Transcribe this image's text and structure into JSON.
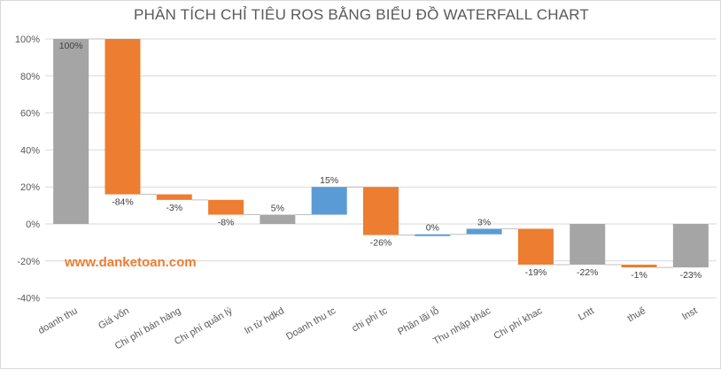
{
  "watermark": "www.danketoan.com",
  "colors": {
    "total": "#a5a5a5",
    "decrease": "#ed7d31",
    "increase": "#5b9bd5",
    "grid": "#d9d9d9",
    "connector": "#bfbfbf"
  },
  "chart_data": {
    "type": "bar",
    "subtype": "waterfall",
    "title": "PHÂN TÍCH CHỈ TIÊU ROS BẰNG BIỂU ĐỒ WATERFALL CHART",
    "xlabel": "",
    "ylabel": "",
    "ylim": [
      -40,
      100
    ],
    "yticks": [
      100,
      80,
      60,
      40,
      20,
      0,
      -20,
      -40
    ],
    "ytick_labels": [
      "100%",
      "80%",
      "60%",
      "40%",
      "20%",
      "0%",
      "-20%",
      "-40%"
    ],
    "grid": true,
    "legend": "none",
    "categories": [
      "doanh thu",
      "Giá vốn",
      "Chi phí bán hàng",
      "Chi phí quản lý",
      "ln từ hdkd",
      "Doanh thu tc",
      "chi phí tc",
      "Phần lãi lỗ",
      "Thu nhập khác",
      "Chi phí khac",
      "Lntt",
      "thuế",
      "lnst"
    ],
    "bars": [
      {
        "label": "100%",
        "start": 0,
        "end": 100,
        "kind": "total"
      },
      {
        "label": "-84%",
        "start": 100,
        "end": 16,
        "kind": "decrease"
      },
      {
        "label": "-3%",
        "start": 16,
        "end": 13,
        "kind": "decrease"
      },
      {
        "label": "-8%",
        "start": 13,
        "end": 5,
        "kind": "decrease"
      },
      {
        "label": "5%",
        "start": 0,
        "end": 5,
        "kind": "total"
      },
      {
        "label": "15%",
        "start": 5,
        "end": 20,
        "kind": "increase"
      },
      {
        "label": "-26%",
        "start": 20,
        "end": -6,
        "kind": "decrease"
      },
      {
        "label": "0%",
        "start": -6,
        "end": -5.6,
        "kind": "increase"
      },
      {
        "label": "3%",
        "start": -5.6,
        "end": -2.6,
        "kind": "increase"
      },
      {
        "label": "-19%",
        "start": -2.6,
        "end": -22,
        "kind": "decrease"
      },
      {
        "label": "-22%",
        "start": 0,
        "end": -22,
        "kind": "total"
      },
      {
        "label": "-1%",
        "start": -22,
        "end": -23.5,
        "kind": "decrease"
      },
      {
        "label": "-23%",
        "start": 0,
        "end": -23.5,
        "kind": "total"
      }
    ]
  }
}
